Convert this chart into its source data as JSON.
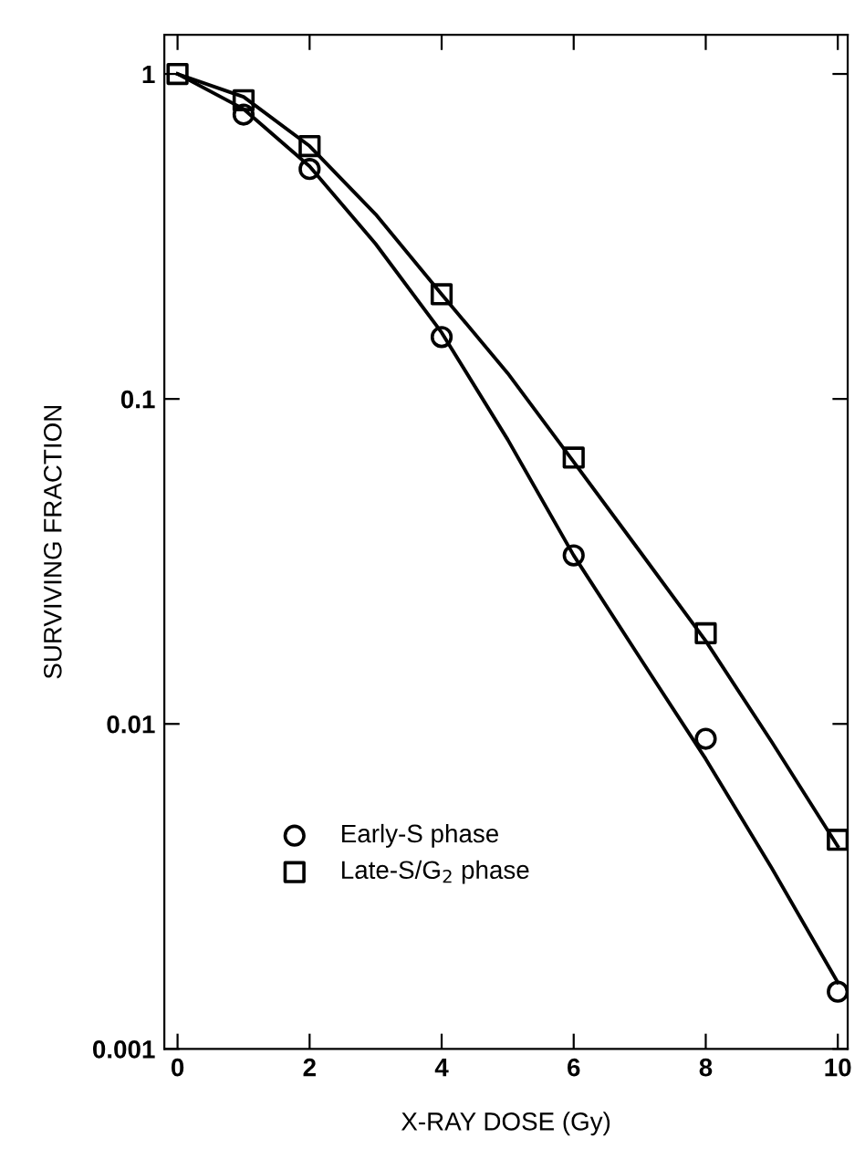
{
  "chart_data": {
    "type": "scatter",
    "xlabel": "X-RAY DOSE (Gy)",
    "ylabel": "SURVIVING FRACTION",
    "log": "y",
    "xlim": [
      -0.2,
      10.15
    ],
    "ylim": [
      0.001,
      1.32
    ],
    "xticks": [
      0,
      2,
      4,
      6,
      8,
      10
    ],
    "yticks": [
      {
        "value": 0.001,
        "label": "0.001"
      },
      {
        "value": 0.01,
        "label": "0.01"
      },
      {
        "value": 0.1,
        "label": "0.1"
      },
      {
        "value": 1,
        "label": "1"
      }
    ],
    "grid": false,
    "legend": "bottom left",
    "x": [
      0,
      1,
      2,
      4,
      6,
      8,
      10
    ],
    "series": [
      {
        "name": "Early-S phase",
        "color": "#000000",
        "marker": "circle",
        "values": [
          null,
          0.75,
          0.51,
          0.155,
          0.033,
          0.009,
          0.0015
        ]
      },
      {
        "name": "Late-S/G$_{2}$ phase",
        "color": "#000000",
        "marker": "square",
        "values": [
          1.0,
          0.83,
          0.6,
          0.21,
          0.066,
          0.019,
          0.0044
        ]
      },
      {
        "type": "line",
        "color": "#000000",
        "marker": "none",
        "line_style": "solid",
        "x": [
          0,
          1,
          2,
          3,
          4,
          5,
          6,
          7,
          8,
          9,
          10
        ],
        "values": [
          1.0,
          0.78,
          0.52,
          0.3,
          0.16,
          0.075,
          0.033,
          0.016,
          0.0078,
          0.0036,
          0.0016
        ]
      },
      {
        "type": "line",
        "color": "#000000",
        "marker": "none",
        "line_style": "solid",
        "x": [
          0,
          1,
          2,
          3,
          4,
          5,
          6,
          7,
          8,
          9,
          10
        ],
        "values": [
          1.0,
          0.85,
          0.6,
          0.37,
          0.21,
          0.12,
          0.064,
          0.034,
          0.018,
          0.0088,
          0.0042
        ]
      }
    ]
  }
}
